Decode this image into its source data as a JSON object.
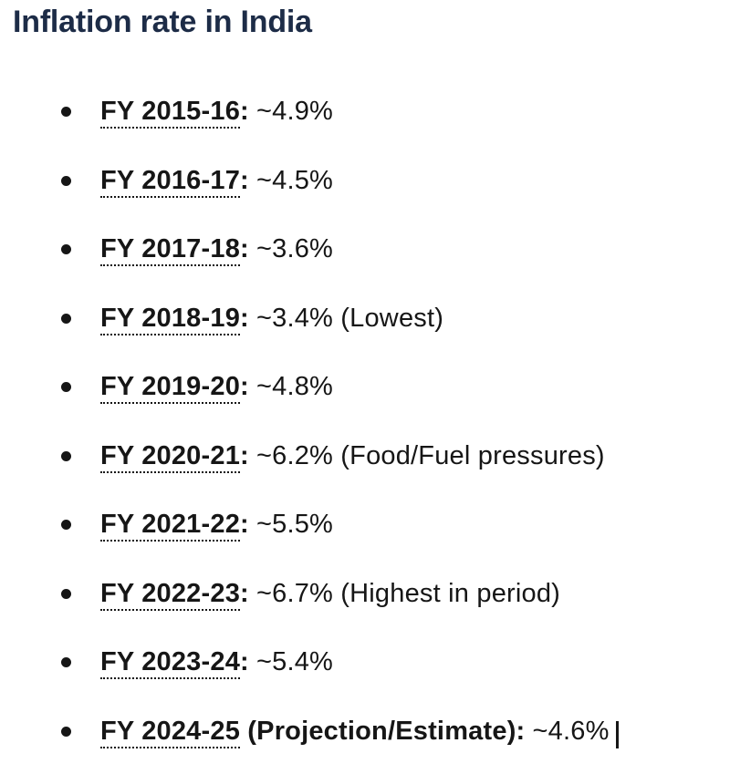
{
  "page": {
    "title": "Inflation rate in India"
  },
  "colors": {
    "background": "#ffffff",
    "heading": "#1d2c47",
    "text": "#161616",
    "caret": "#161616"
  },
  "list": {
    "items": [
      {
        "term": "FY 2015-16",
        "bold_suffix": ":",
        "value": "~4.9%"
      },
      {
        "term": "FY 2016-17",
        "bold_suffix": ":",
        "value": "~4.5%"
      },
      {
        "term": "FY 2017-18",
        "bold_suffix": ":",
        "value": "~3.6%"
      },
      {
        "term": "FY 2018-19",
        "bold_suffix": ":",
        "value": "~3.4% (Lowest)"
      },
      {
        "term": "FY 2019-20",
        "bold_suffix": ":",
        "value": "~4.8%"
      },
      {
        "term": "FY 2020-21",
        "bold_suffix": ":",
        "value": "~6.2% (Food/Fuel pressures)"
      },
      {
        "term": "FY 2021-22",
        "bold_suffix": ":",
        "value": "~5.5%"
      },
      {
        "term": "FY 2022-23",
        "bold_suffix": ":",
        "value": "~6.7% (Highest in period)"
      },
      {
        "term": "FY 2023-24",
        "bold_suffix": ":",
        "value": "~5.4%"
      },
      {
        "term": "FY 2024-25",
        "bold_suffix": " (Projection/Estimate):",
        "value": "~4.6%",
        "caret": true
      }
    ]
  }
}
